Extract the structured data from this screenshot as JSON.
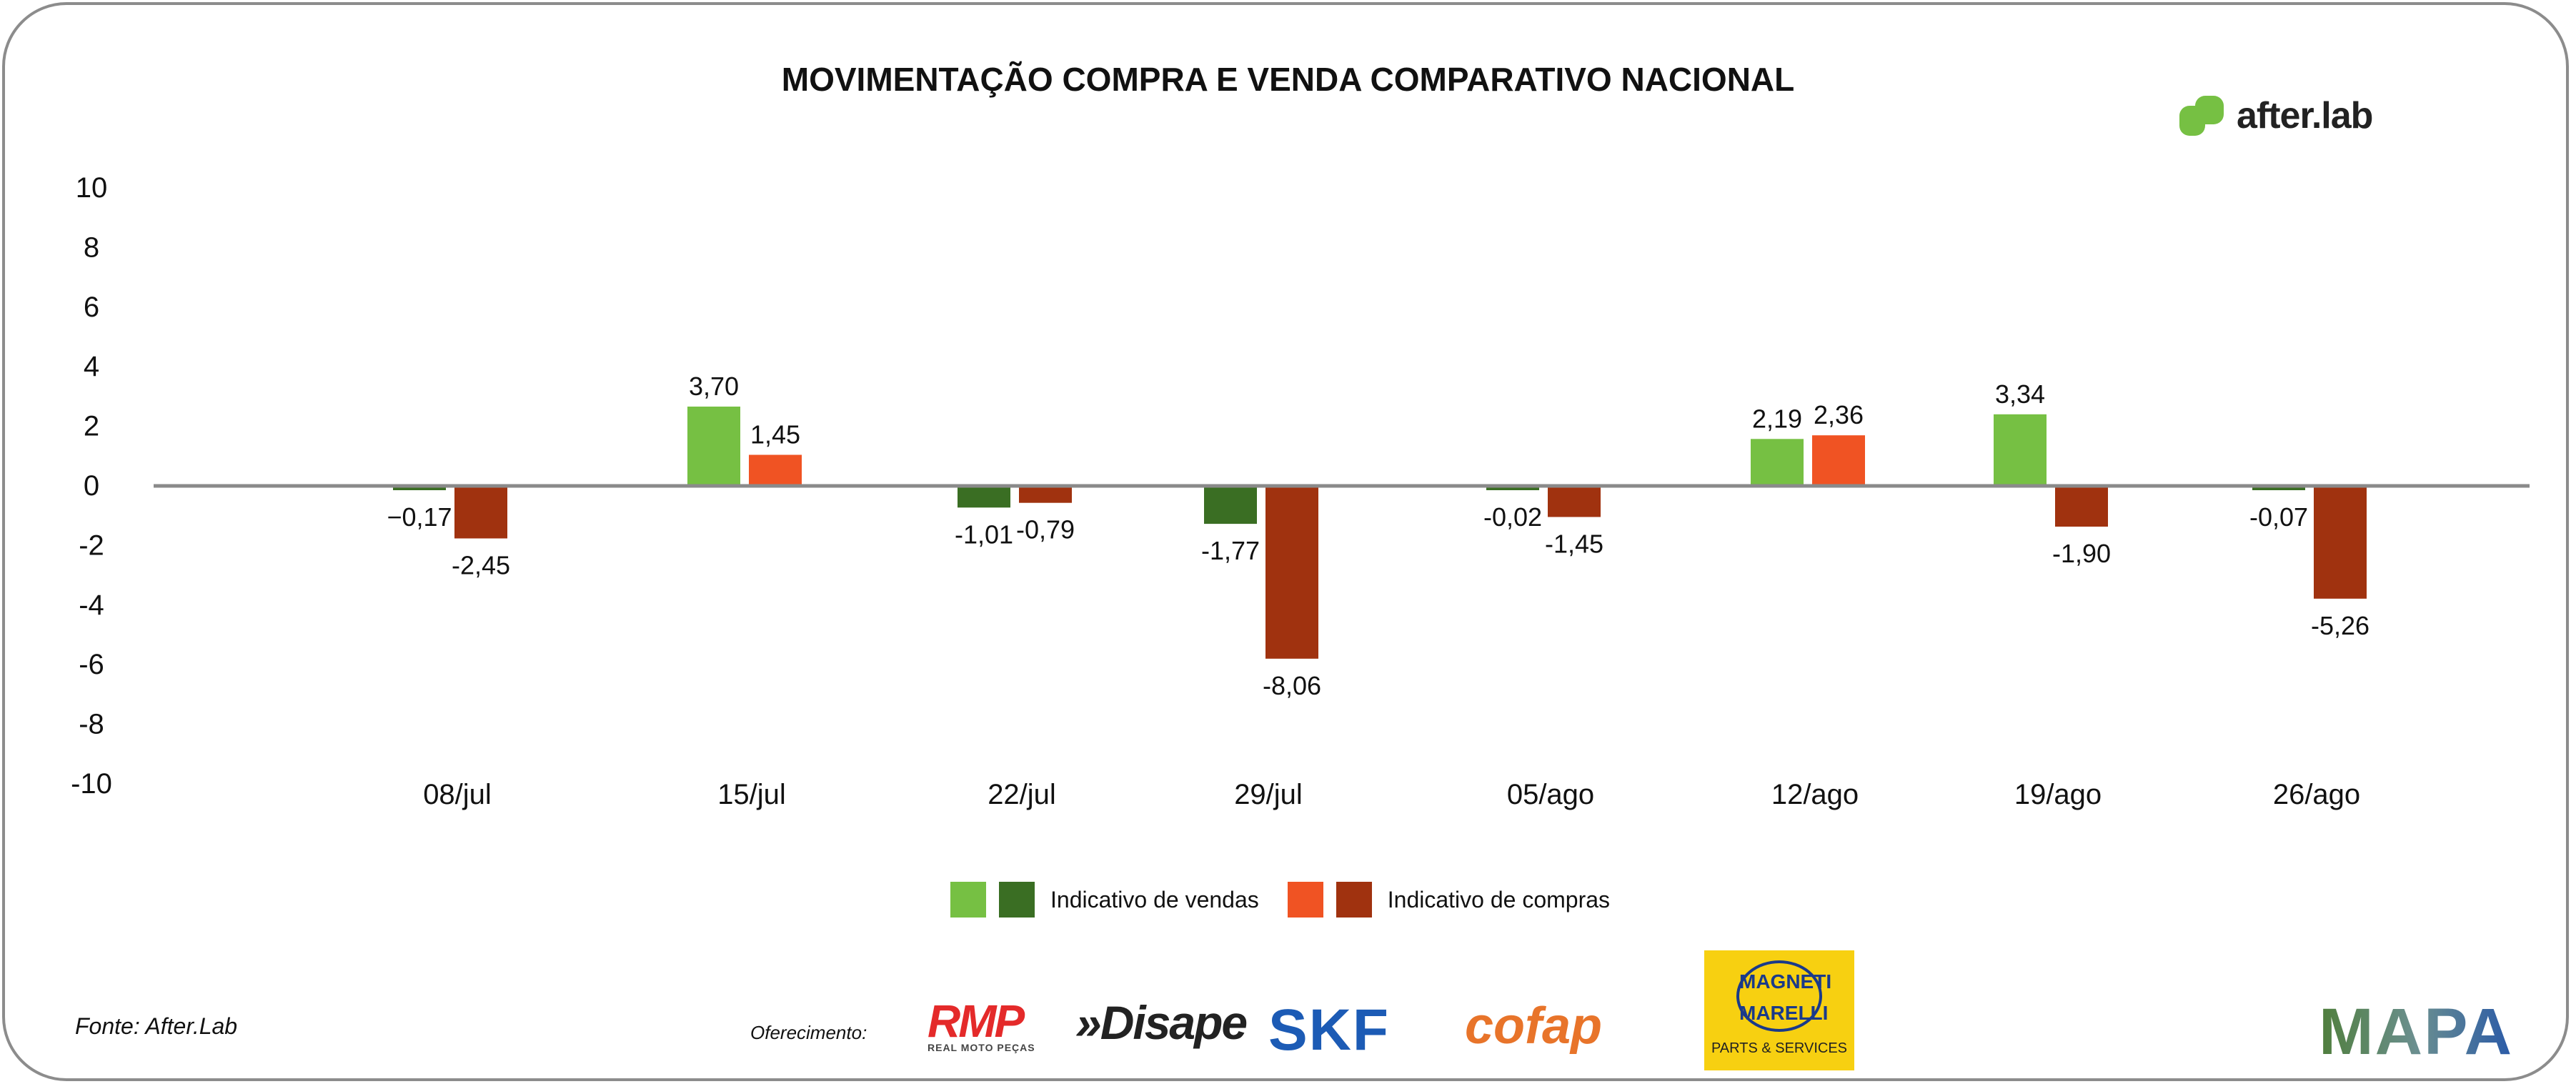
{
  "brand": {
    "name": "after.lab"
  },
  "chart_data": {
    "type": "bar",
    "title": "MOVIMENTAÇÃO COMPRA E VENDA COMPARATIVO NACIONAL",
    "categories": [
      "08/jul",
      "15/jul",
      "22/jul",
      "29/jul",
      "05/ago",
      "12/ago",
      "19/ago",
      "26/ago"
    ],
    "series": [
      {
        "name": "Indicativo de vendas",
        "values": [
          -0.17,
          3.7,
          -1.01,
          -1.77,
          -0.02,
          2.19,
          3.34,
          -0.07
        ],
        "labels": [
          "−0,17",
          "3,70",
          "-1,01",
          "-1,77",
          "-0,02",
          "2,19",
          "3,34",
          "-0,07"
        ],
        "color_positive": "#76C043",
        "color_negative": "#3A6E23"
      },
      {
        "name": "Indicativo de compras",
        "values": [
          -2.45,
          1.45,
          -0.79,
          -8.06,
          -1.45,
          2.36,
          -1.9,
          -5.26
        ],
        "labels": [
          "-2,45",
          "1,45",
          "-0,79",
          "-8,06",
          "-1,45",
          "2,36",
          "-1,90",
          "-5,26"
        ],
        "color_positive": "#F05323",
        "color_negative": "#A0320F"
      }
    ],
    "yticks": [
      "10",
      "8",
      "6",
      "4",
      "2",
      "0",
      "-2",
      "-4",
      "-6",
      "-8",
      "-10"
    ],
    "ylim": [
      -10,
      10
    ],
    "xlabel": "",
    "ylabel": "",
    "grid": false,
    "legend": "bottom-center"
  },
  "footer": {
    "source": "Fonte: After.Lab",
    "offer": "Oferecimento:"
  },
  "sponsors": {
    "rmp": "RMP",
    "rmp_sub": "REAL MOTO PEÇAS",
    "disape": "»Disape",
    "skf": "SKF",
    "cofap": "cofap",
    "magneti": "MAGNETI MARELLI",
    "magneti_sub": "PARTS & SERVICES",
    "mapa": "MAPA"
  }
}
